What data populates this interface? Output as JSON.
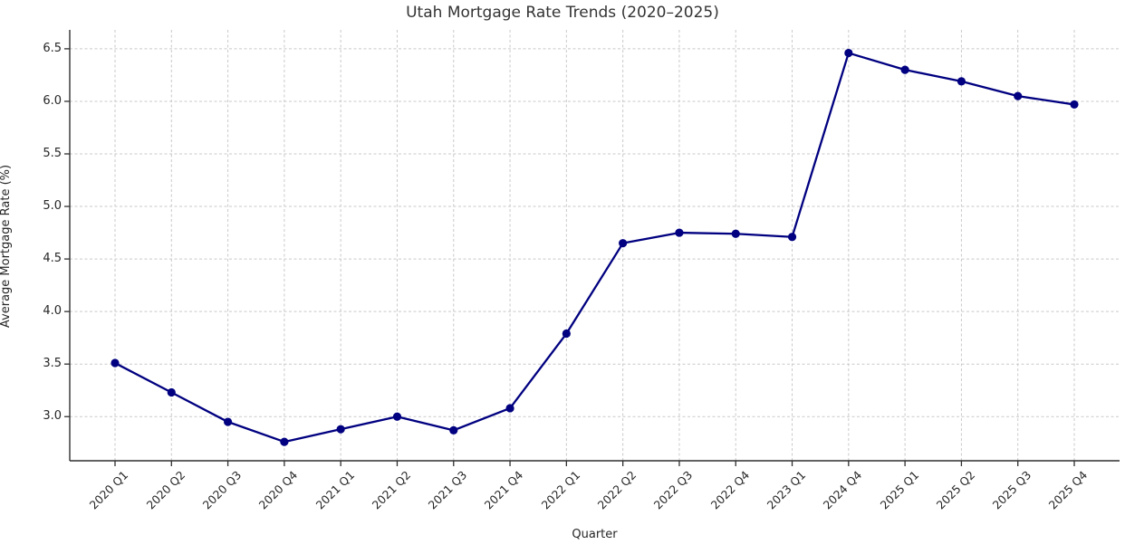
{
  "chart_data": {
    "type": "line",
    "title": "Utah Mortgage Rate Trends (2020–2025)",
    "xlabel": "Quarter",
    "ylabel": "Average Mortgage Rate (%)",
    "categories": [
      "2020 Q1",
      "2020 Q2",
      "2020 Q3",
      "2020 Q4",
      "2021 Q1",
      "2021 Q2",
      "2021 Q3",
      "2021 Q4",
      "2022 Q1",
      "2022 Q2",
      "2022 Q3",
      "2022 Q4",
      "2023 Q1",
      "2024 Q4",
      "2025 Q1",
      "2025 Q2",
      "2025 Q3",
      "2025 Q4"
    ],
    "values": [
      3.51,
      3.23,
      2.95,
      2.76,
      2.88,
      3.0,
      2.87,
      3.08,
      3.79,
      4.65,
      4.75,
      4.74,
      4.71,
      6.46,
      6.3,
      6.19,
      6.05,
      5.97
    ],
    "yticks": [
      3.0,
      3.5,
      4.0,
      4.5,
      5.0,
      5.5,
      6.0,
      6.5
    ],
    "ylim": [
      2.58,
      6.68
    ],
    "grid": true,
    "legend": "none",
    "line_color": "#000080",
    "marker": "circle",
    "grid_color": "#c9c9c9",
    "spine_color": "#2f2f2f",
    "text_color": "#262626",
    "title_color": "#333333",
    "background_color": "#ffffff"
  }
}
